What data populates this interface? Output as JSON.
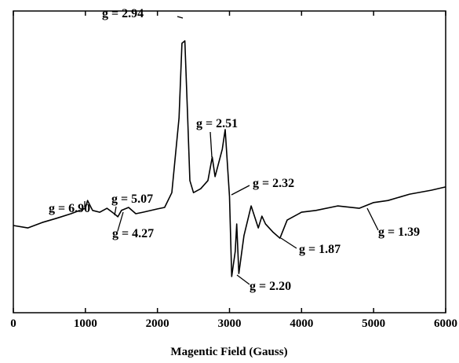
{
  "chart_data": {
    "type": "line",
    "xlabel": "Magentic Field (Gauss)",
    "x": [
      0,
      200,
      400,
      600,
      800,
      1000,
      1030,
      1100,
      1200,
      1300,
      1400,
      1450,
      1500,
      1600,
      1700,
      1800,
      2000,
      2100,
      2200,
      2300,
      2340,
      2380,
      2420,
      2450,
      2500,
      2600,
      2700,
      2760,
      2800,
      2900,
      2940,
      3000,
      3030,
      3080,
      3100,
      3130,
      3200,
      3300,
      3400,
      3450,
      3500,
      3600,
      3700,
      3800,
      4000,
      4200,
      4500,
      4800,
      5000,
      5200,
      5500,
      5800,
      6000
    ],
    "series": [
      {
        "color": "#000000",
        "values": [
          28.9,
          28.1,
          29.9,
          31.3,
          32.8,
          34.6,
          37.2,
          33.9,
          33.3,
          34.6,
          32.8,
          31.8,
          33.9,
          34.9,
          32.8,
          33.3,
          34.4,
          34.9,
          39.8,
          64.6,
          89.3,
          90.1,
          64.6,
          43.8,
          39.8,
          41.1,
          43.8,
          51.6,
          45.1,
          54.2,
          60.7,
          38.5,
          12.0,
          20.3,
          29.4,
          13.0,
          25.5,
          35.4,
          28.1,
          32.0,
          29.4,
          26.8,
          24.7,
          30.7,
          33.3,
          33.9,
          35.4,
          34.6,
          36.5,
          37.2,
          39.3,
          40.6,
          41.7
        ]
      }
    ],
    "xlim": [
      0,
      6000
    ],
    "xticks": [
      0,
      1000,
      2000,
      3000,
      4000,
      5000,
      6000
    ],
    "ylim": [
      0,
      100
    ],
    "annotations": [
      "g = 2.94",
      "g = 2.51",
      "g = 6.90",
      "g = 5.07",
      "g = 4.27",
      "g = 2.32",
      "g = 2.20",
      "g = 1.87",
      "g = 1.39"
    ]
  }
}
